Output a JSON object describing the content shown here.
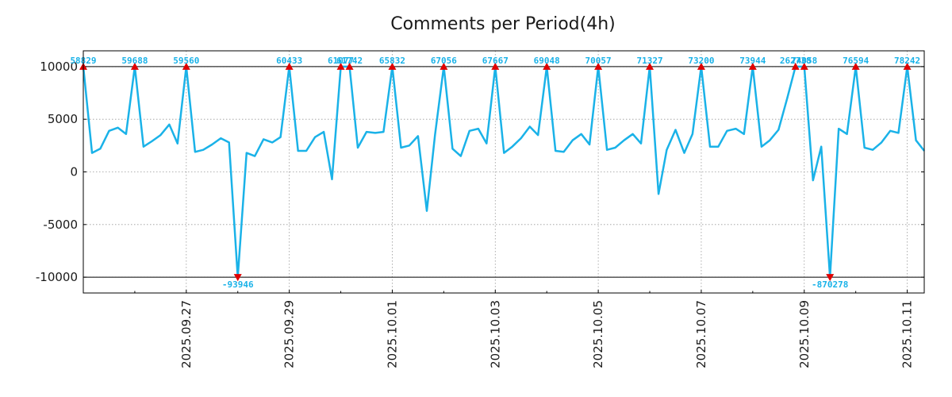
{
  "chart_data": {
    "type": "line",
    "title": "Comments per Period(4h)",
    "xlabel": "",
    "ylabel": "",
    "ylim": [
      -11500,
      11500
    ],
    "y_ticks": [
      10000,
      5000,
      0,
      -5000,
      -10000
    ],
    "y_tick_labels": [
      "10000",
      "5000",
      "0",
      "-5000",
      "-10000"
    ],
    "x_ticks": [
      {
        "day": 2,
        "label": "2025.09.27"
      },
      {
        "day": 4,
        "label": "2025.09.29"
      },
      {
        "day": 6,
        "label": "2025.10.01"
      },
      {
        "day": 8,
        "label": "2025.10.03"
      },
      {
        "day": 10,
        "label": "2025.10.05"
      },
      {
        "day": 12,
        "label": "2025.10.07"
      },
      {
        "day": 14,
        "label": "2025.10.09"
      },
      {
        "day": 16,
        "label": "2025.10.11"
      }
    ],
    "x_range_days": [
      0.0,
      16.33
    ],
    "x_unit": "days since 2025.09.25 00:00, sampled every 4h",
    "clip_upper": 10000,
    "clip_lower": -10000,
    "grid": true,
    "series": [
      {
        "name": "comments",
        "color": "#1ab2e8",
        "points": [
          [
            0.0,
            10000
          ],
          [
            0.17,
            1800
          ],
          [
            0.33,
            2200
          ],
          [
            0.5,
            3900
          ],
          [
            0.67,
            4200
          ],
          [
            0.83,
            3600
          ],
          [
            1.0,
            10000
          ],
          [
            1.17,
            2400
          ],
          [
            1.33,
            2900
          ],
          [
            1.5,
            3500
          ],
          [
            1.67,
            4500
          ],
          [
            1.83,
            2700
          ],
          [
            2.0,
            10000
          ],
          [
            2.17,
            1900
          ],
          [
            2.33,
            2100
          ],
          [
            2.5,
            2600
          ],
          [
            2.67,
            3200
          ],
          [
            2.83,
            2800
          ],
          [
            3.0,
            -10000
          ],
          [
            3.17,
            1800
          ],
          [
            3.33,
            1500
          ],
          [
            3.5,
            3100
          ],
          [
            3.67,
            2800
          ],
          [
            3.83,
            3300
          ],
          [
            4.0,
            10000
          ],
          [
            4.17,
            2000
          ],
          [
            4.33,
            2000
          ],
          [
            4.5,
            3300
          ],
          [
            4.67,
            3800
          ],
          [
            4.83,
            -700
          ],
          [
            5.0,
            10000
          ],
          [
            5.17,
            10000
          ],
          [
            5.33,
            2300
          ],
          [
            5.5,
            3800
          ],
          [
            5.67,
            3700
          ],
          [
            5.83,
            3800
          ],
          [
            6.0,
            10000
          ],
          [
            6.17,
            2300
          ],
          [
            6.33,
            2500
          ],
          [
            6.5,
            3400
          ],
          [
            6.67,
            -3700
          ],
          [
            6.83,
            3500
          ],
          [
            7.0,
            10000
          ],
          [
            7.17,
            2200
          ],
          [
            7.33,
            1500
          ],
          [
            7.5,
            3900
          ],
          [
            7.67,
            4100
          ],
          [
            7.83,
            2700
          ],
          [
            8.0,
            10000
          ],
          [
            8.17,
            1800
          ],
          [
            8.33,
            2400
          ],
          [
            8.5,
            3200
          ],
          [
            8.67,
            4300
          ],
          [
            8.83,
            3500
          ],
          [
            9.0,
            10000
          ],
          [
            9.17,
            2000
          ],
          [
            9.33,
            1900
          ],
          [
            9.5,
            3000
          ],
          [
            9.67,
            3600
          ],
          [
            9.83,
            2600
          ],
          [
            10.0,
            10000
          ],
          [
            10.17,
            2100
          ],
          [
            10.33,
            2300
          ],
          [
            10.5,
            3000
          ],
          [
            10.67,
            3600
          ],
          [
            10.83,
            2700
          ],
          [
            11.0,
            10000
          ],
          [
            11.17,
            -2100
          ],
          [
            11.33,
            2100
          ],
          [
            11.5,
            4000
          ],
          [
            11.67,
            1800
          ],
          [
            11.83,
            3600
          ],
          [
            12.0,
            10000
          ],
          [
            12.17,
            2400
          ],
          [
            12.33,
            2400
          ],
          [
            12.5,
            3900
          ],
          [
            12.67,
            4100
          ],
          [
            12.83,
            3600
          ],
          [
            13.0,
            10000
          ],
          [
            13.17,
            2400
          ],
          [
            13.33,
            3000
          ],
          [
            13.5,
            4000
          ],
          [
            13.67,
            7000
          ],
          [
            13.83,
            10000
          ],
          [
            14.0,
            10000
          ],
          [
            14.17,
            -800
          ],
          [
            14.33,
            2400
          ],
          [
            14.5,
            -10000
          ],
          [
            14.67,
            4100
          ],
          [
            14.83,
            3600
          ],
          [
            15.0,
            10000
          ],
          [
            15.17,
            2300
          ],
          [
            15.33,
            2100
          ],
          [
            15.5,
            2800
          ],
          [
            15.67,
            3900
          ],
          [
            15.83,
            3700
          ],
          [
            16.0,
            10000
          ],
          [
            16.17,
            3000
          ],
          [
            16.33,
            2000
          ]
        ]
      }
    ],
    "peak_markers": [
      {
        "x": 0.0,
        "y": 10000,
        "label": "58829",
        "dir": "up"
      },
      {
        "x": 1.0,
        "y": 10000,
        "label": "59688",
        "dir": "up"
      },
      {
        "x": 2.0,
        "y": 10000,
        "label": "59560",
        "dir": "up"
      },
      {
        "x": 3.0,
        "y": -10000,
        "label": "-93946",
        "dir": "down"
      },
      {
        "x": 4.0,
        "y": 10000,
        "label": "60433",
        "dir": "up"
      },
      {
        "x": 5.0,
        "y": 10000,
        "label": "61077",
        "dir": "up"
      },
      {
        "x": 5.17,
        "y": 10000,
        "label": "61742",
        "dir": "up"
      },
      {
        "x": 6.0,
        "y": 10000,
        "label": "65832",
        "dir": "up"
      },
      {
        "x": 7.0,
        "y": 10000,
        "label": "67056",
        "dir": "up"
      },
      {
        "x": 8.0,
        "y": 10000,
        "label": "67667",
        "dir": "up"
      },
      {
        "x": 9.0,
        "y": 10000,
        "label": "69048",
        "dir": "up"
      },
      {
        "x": 10.0,
        "y": 10000,
        "label": "70057",
        "dir": "up"
      },
      {
        "x": 11.0,
        "y": 10000,
        "label": "71327",
        "dir": "up"
      },
      {
        "x": 12.0,
        "y": 10000,
        "label": "73200",
        "dir": "up"
      },
      {
        "x": 13.0,
        "y": 10000,
        "label": "73944",
        "dir": "up"
      },
      {
        "x": 13.83,
        "y": 10000,
        "label": "262738",
        "dir": "up"
      },
      {
        "x": 14.0,
        "y": 10000,
        "label": "74058",
        "dir": "up"
      },
      {
        "x": 14.5,
        "y": -10000,
        "label": "-870278",
        "dir": "down"
      },
      {
        "x": 15.0,
        "y": 10000,
        "label": "76594",
        "dir": "up"
      },
      {
        "x": 16.0,
        "y": 10000,
        "label": "78242",
        "dir": "up"
      }
    ]
  }
}
